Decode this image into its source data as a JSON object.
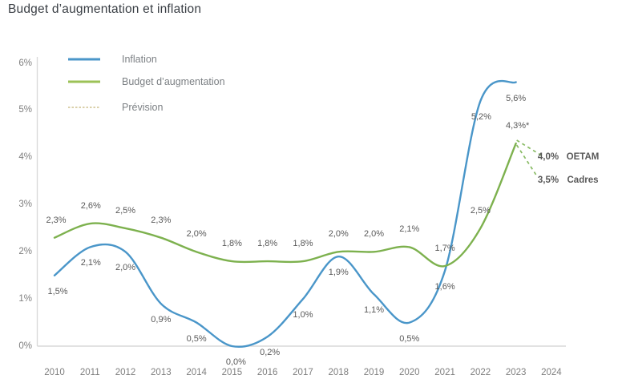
{
  "title": "Budget d’augmentation et inflation",
  "colors": {
    "inflation": "#4a96c9",
    "budget": "#7db14e",
    "budget_legend": "#9cc257",
    "prevision_legend": "#cdc08d",
    "prevision_chart": "#87ba62",
    "axis": "#d9d9d9",
    "data_label": "#595959",
    "tick_label": "#7f7f7f",
    "title": "#393e44"
  },
  "legend": {
    "items": [
      {
        "id": "inflation",
        "label": "Inflation",
        "line_style": "solid",
        "color_key": "inflation"
      },
      {
        "id": "budget",
        "label": "Budget d’augmentation",
        "line_style": "solid",
        "color_key": "budget_legend"
      },
      {
        "id": "prevision",
        "label": "Prévision",
        "line_style": "dotted",
        "color_key": "prevision_legend"
      }
    ]
  },
  "chart_data": {
    "type": "line",
    "title": "Budget d’augmentation et inflation",
    "categories": [
      "2010",
      "2011",
      "2012",
      "2013",
      "2014",
      "2015",
      "2016",
      "2017",
      "2018",
      "2019",
      "2020",
      "2021",
      "2022",
      "2023",
      "2024"
    ],
    "y_ticks": [
      "0%",
      "1%",
      "2%",
      "3%",
      "4%",
      "5%",
      "6%"
    ],
    "ylim": [
      0,
      6
    ],
    "grid": false,
    "legend_position": "top-left",
    "series": [
      {
        "name": "Inflation",
        "color_key": "inflation",
        "values": [
          1.5,
          2.1,
          2.0,
          0.9,
          0.5,
          0.0,
          0.2,
          1.0,
          1.9,
          1.1,
          0.5,
          1.6,
          5.2,
          5.6,
          null
        ],
        "point_labels": [
          "1,5%",
          "2,1%",
          "2,0%",
          "0,9%",
          "0,5%",
          "0,0%",
          "0,2%",
          "1,0%",
          "1,9%",
          "1,1%",
          "0,5%",
          "1,6%",
          "5,2%",
          "5,6%"
        ],
        "label_side": "below",
        "label_dy": 20,
        "label_dx": [
          4,
          1,
          0,
          0,
          0,
          5,
          3,
          0,
          0,
          0,
          0,
          0,
          1,
          0
        ]
      },
      {
        "name": "Budget d’augmentation",
        "color_key": "budget",
        "values": [
          2.3,
          2.6,
          2.5,
          2.3,
          2.0,
          1.8,
          1.8,
          1.8,
          2.0,
          2.0,
          2.1,
          1.7,
          2.5,
          4.3,
          null
        ],
        "point_labels": [
          "2,3%",
          "2,6%",
          "2,5%",
          "2,3%",
          "2,0%",
          "1,8%",
          "1,8%",
          "1,8%",
          "2,0%",
          "2,0%",
          "2,1%",
          "1,7%",
          "2,5%",
          "4,3%*"
        ],
        "label_side": "above",
        "label_dy": -22,
        "label_dx": [
          2,
          1,
          0,
          0,
          0,
          0,
          0,
          0,
          0,
          0,
          0,
          0,
          0,
          2
        ]
      }
    ],
    "prevision": {
      "from_year": "2023",
      "from_value": 4.3,
      "targets": [
        {
          "value_label": "4,0%",
          "value": 4.0,
          "name": "OETAM"
        },
        {
          "value_label": "3,5%",
          "value": 3.5,
          "name": "Cadres"
        }
      ]
    }
  }
}
